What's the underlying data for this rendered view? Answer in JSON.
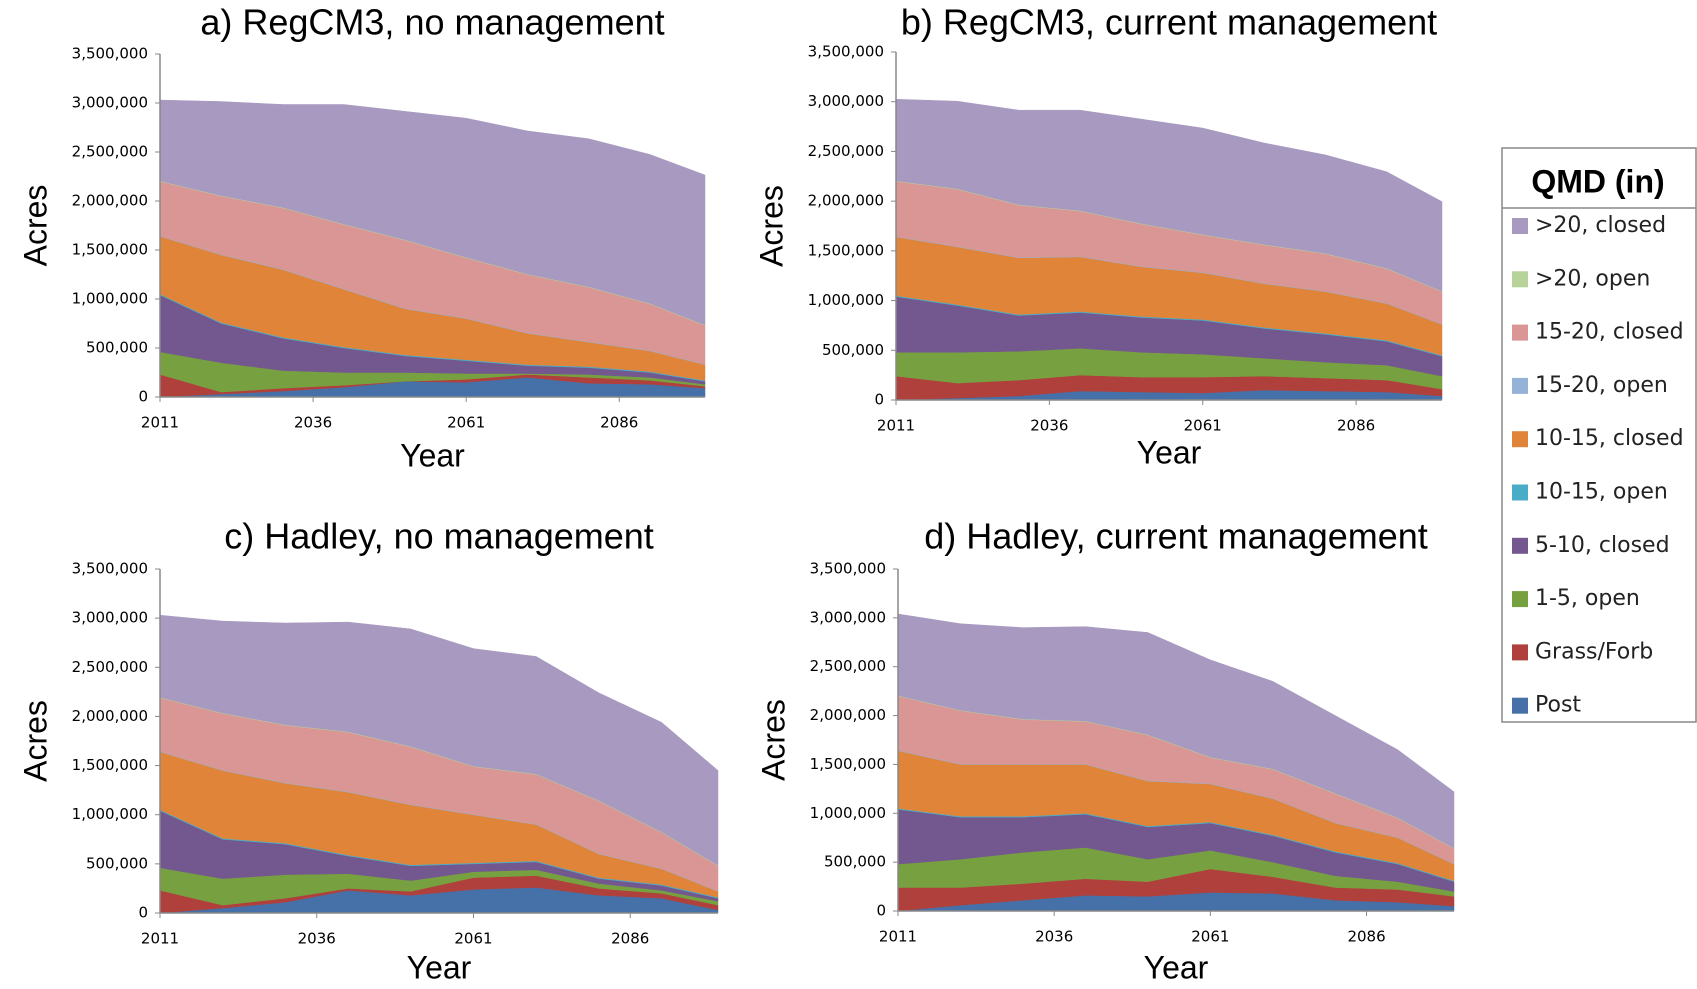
{
  "chart_data": [
    {
      "type": "stacked-area",
      "title": "a) RegCM3, no management",
      "xlabel": "Year",
      "ylabel": "Acres",
      "legend_title": "QMD (in)",
      "x": [
        2011,
        2021,
        2031,
        2041,
        2051,
        2061,
        2071,
        2081,
        2091,
        2100
      ],
      "xlim": [
        2011,
        2100
      ],
      "xticks": [
        2011,
        2036,
        2061,
        2086
      ],
      "ylim": [
        0,
        3500000
      ],
      "yticks": [
        0,
        {
          "value": 500000,
          "label": "500,000"
        },
        {
          "value": 1000000,
          "label": "1,000,000"
        },
        {
          "value": 1500000,
          "label": "1,500,000"
        },
        {
          "value": 2000000,
          "label": "2,000,000"
        },
        {
          "value": 2500000,
          "label": "2,500,000"
        },
        {
          "value": 3000000,
          "label": "3,000,000"
        },
        {
          "value": 3500000,
          "label": "3,500,000"
        }
      ],
      "series": [
        {
          "name": ">20, closed",
          "color": "#a899c0",
          "values": [
            825000,
            960000,
            1050000,
            1220000,
            1310000,
            1420000,
            1460000,
            1510000,
            1520000,
            1530000
          ]
        },
        {
          "name": ">20, open",
          "color": "#b7d39a",
          "values": [
            5000,
            5000,
            5000,
            5000,
            5000,
            5000,
            5000,
            5000,
            5000,
            5000
          ]
        },
        {
          "name": "15-20, closed",
          "color": "#d99694",
          "values": [
            555000,
            595000,
            625000,
            655000,
            695000,
            615000,
            595000,
            555000,
            475000,
            395000
          ]
        },
        {
          "name": "15-20, open",
          "color": "#95b3d7",
          "values": [
            5000,
            5000,
            5000,
            5000,
            5000,
            5000,
            5000,
            5000,
            5000,
            5000
          ]
        },
        {
          "name": "10-15, closed",
          "color": "#e0843a",
          "values": [
            590000,
            690000,
            690000,
            590000,
            470000,
            420000,
            320000,
            250000,
            210000,
            160000
          ]
        },
        {
          "name": "10-15, open",
          "color": "#4bacc6",
          "values": [
            10000,
            10000,
            10000,
            10000,
            10000,
            10000,
            10000,
            10000,
            10000,
            10000
          ]
        },
        {
          "name": "5-10, closed",
          "color": "#73578f",
          "values": [
            580000,
            400000,
            330000,
            250000,
            170000,
            130000,
            80000,
            70000,
            50000,
            30000
          ]
        },
        {
          "name": "1-5, open",
          "color": "#77a040",
          "values": [
            230000,
            300000,
            180000,
            130000,
            90000,
            60000,
            10000,
            30000,
            30000,
            20000
          ]
        },
        {
          "name": "Grass/Forb",
          "color": "#b0403c",
          "values": [
            230000,
            20000,
            30000,
            20000,
            0,
            30000,
            30000,
            60000,
            40000,
            20000
          ]
        },
        {
          "name": "Post",
          "color": "#4670a8",
          "values": [
            0,
            30000,
            60000,
            100000,
            160000,
            150000,
            200000,
            140000,
            130000,
            90000
          ]
        }
      ]
    },
    {
      "type": "stacked-area",
      "title": "b) RegCM3, current management",
      "xlabel": "Year",
      "ylabel": "Acres",
      "x": [
        2011,
        2021,
        2031,
        2041,
        2051,
        2061,
        2071,
        2081,
        2091,
        2100
      ],
      "xlim": [
        2011,
        2100
      ],
      "xticks": [
        2011,
        2036,
        2061,
        2086
      ],
      "ylim": [
        0,
        3500000
      ],
      "yticks": [
        0,
        {
          "value": 500000,
          "label": "500,000"
        },
        {
          "value": 1000000,
          "label": "1,000,000"
        },
        {
          "value": 1500000,
          "label": "1,500,000"
        },
        {
          "value": 2000000,
          "label": "2,000,000"
        },
        {
          "value": 2500000,
          "label": "2,500,000"
        },
        {
          "value": 3000000,
          "label": "3,000,000"
        },
        {
          "value": 3500000,
          "label": "3,500,000"
        }
      ],
      "series": [
        {
          "name": ">20, closed",
          "color": "#a899c0",
          "values": [
            820000,
            880000,
            950000,
            1010000,
            1050000,
            1070000,
            1020000,
            990000,
            970000,
            900000
          ]
        },
        {
          "name": ">20, open",
          "color": "#b7d39a",
          "values": [
            5000,
            5000,
            5000,
            5000,
            5000,
            5000,
            5000,
            5000,
            5000,
            5000
          ]
        },
        {
          "name": "15-20, closed",
          "color": "#d99694",
          "values": [
            555000,
            575000,
            525000,
            455000,
            425000,
            375000,
            385000,
            375000,
            345000,
            325000
          ]
        },
        {
          "name": "15-20, open",
          "color": "#95b3d7",
          "values": [
            5000,
            5000,
            5000,
            5000,
            5000,
            5000,
            5000,
            5000,
            5000,
            5000
          ]
        },
        {
          "name": "10-15, closed",
          "color": "#e0843a",
          "values": [
            590000,
            580000,
            570000,
            550000,
            500000,
            470000,
            440000,
            420000,
            370000,
            310000
          ]
        },
        {
          "name": "10-15, open",
          "color": "#4bacc6",
          "values": [
            10000,
            10000,
            10000,
            10000,
            10000,
            10000,
            10000,
            10000,
            10000,
            10000
          ]
        },
        {
          "name": "5-10, closed",
          "color": "#73578f",
          "values": [
            560000,
            470000,
            360000,
            360000,
            350000,
            340000,
            300000,
            280000,
            240000,
            200000
          ]
        },
        {
          "name": "1-5, open",
          "color": "#77a040",
          "values": [
            240000,
            310000,
            290000,
            270000,
            250000,
            230000,
            180000,
            160000,
            150000,
            130000
          ]
        },
        {
          "name": "Grass/Forb",
          "color": "#b0403c",
          "values": [
            240000,
            150000,
            160000,
            160000,
            150000,
            160000,
            140000,
            130000,
            120000,
            70000
          ]
        },
        {
          "name": "Post",
          "color": "#4670a8",
          "values": [
            0,
            20000,
            40000,
            90000,
            80000,
            70000,
            100000,
            90000,
            80000,
            40000
          ]
        }
      ]
    },
    {
      "type": "stacked-area",
      "title": "c) Hadley, no management",
      "xlabel": "Year",
      "ylabel": "Acres",
      "x": [
        2011,
        2021,
        2031,
        2041,
        2051,
        2061,
        2071,
        2081,
        2091,
        2100
      ],
      "xlim": [
        2011,
        2100
      ],
      "xticks": [
        2011,
        2036,
        2061,
        2086
      ],
      "ylim": [
        0,
        3500000
      ],
      "yticks": [
        0,
        {
          "value": 500000,
          "label": "500,000"
        },
        {
          "value": 1000000,
          "label": "1,000,000"
        },
        {
          "value": 1500000,
          "label": "1,500,000"
        },
        {
          "value": 2000000,
          "label": "2,000,000"
        },
        {
          "value": 2500000,
          "label": "2,500,000"
        },
        {
          "value": 3000000,
          "label": "3,000,000"
        },
        {
          "value": 3500000,
          "label": "3,500,000"
        }
      ],
      "series": [
        {
          "name": ">20, closed",
          "color": "#a899c0",
          "values": [
            835000,
            935000,
            1035000,
            1115000,
            1195000,
            1195000,
            1195000,
            1095000,
            1115000,
            965000
          ]
        },
        {
          "name": ">20, open",
          "color": "#b7d39a",
          "values": [
            5000,
            5000,
            5000,
            5000,
            5000,
            5000,
            5000,
            5000,
            5000,
            5000
          ]
        },
        {
          "name": "15-20, closed",
          "color": "#d99694",
          "values": [
            545000,
            575000,
            585000,
            605000,
            585000,
            485000,
            505000,
            535000,
            365000,
            255000
          ]
        },
        {
          "name": "15-20, open",
          "color": "#95b3d7",
          "values": [
            5000,
            5000,
            5000,
            5000,
            5000,
            5000,
            5000,
            5000,
            5000,
            5000
          ]
        },
        {
          "name": "10-15, closed",
          "color": "#e0843a",
          "values": [
            590000,
            690000,
            610000,
            640000,
            610000,
            490000,
            370000,
            240000,
            160000,
            60000
          ]
        },
        {
          "name": "10-15, open",
          "color": "#4bacc6",
          "values": [
            10000,
            10000,
            10000,
            10000,
            10000,
            10000,
            10000,
            10000,
            10000,
            10000
          ]
        },
        {
          "name": "5-10, closed",
          "color": "#73578f",
          "values": [
            580000,
            400000,
            310000,
            180000,
            150000,
            80000,
            80000,
            50000,
            50000,
            30000
          ]
        },
        {
          "name": "1-5, open",
          "color": "#77a040",
          "values": [
            230000,
            270000,
            240000,
            150000,
            110000,
            60000,
            60000,
            50000,
            30000,
            40000
          ]
        },
        {
          "name": "Grass/Forb",
          "color": "#b0403c",
          "values": [
            230000,
            30000,
            40000,
            20000,
            40000,
            120000,
            120000,
            70000,
            50000,
            50000
          ]
        },
        {
          "name": "Post",
          "color": "#4670a8",
          "values": [
            0,
            50000,
            110000,
            230000,
            180000,
            240000,
            260000,
            180000,
            150000,
            30000
          ]
        }
      ]
    },
    {
      "type": "stacked-area",
      "title": "d) Hadley, current management",
      "xlabel": "Year",
      "ylabel": "Acres",
      "x": [
        2011,
        2021,
        2031,
        2041,
        2051,
        2061,
        2071,
        2081,
        2091,
        2100
      ],
      "xlim": [
        2011,
        2100
      ],
      "xticks": [
        2011,
        2036,
        2061,
        2086
      ],
      "ylim": [
        0,
        3500000
      ],
      "yticks": [
        0,
        {
          "value": 500000,
          "label": "500,000"
        },
        {
          "value": 1000000,
          "label": "1,000,000"
        },
        {
          "value": 1500000,
          "label": "1,500,000"
        },
        {
          "value": 2000000,
          "label": "2,000,000"
        },
        {
          "value": 2500000,
          "label": "2,500,000"
        },
        {
          "value": 3000000,
          "label": "3,000,000"
        },
        {
          "value": 3500000,
          "label": "3,500,000"
        }
      ],
      "series": [
        {
          "name": ">20, closed",
          "color": "#a899c0",
          "values": [
            835000,
            885000,
            935000,
            965000,
            1045000,
            995000,
            895000,
            795000,
            695000,
            575000
          ]
        },
        {
          "name": ">20, open",
          "color": "#b7d39a",
          "values": [
            5000,
            5000,
            5000,
            5000,
            5000,
            5000,
            5000,
            5000,
            5000,
            5000
          ]
        },
        {
          "name": "15-20, closed",
          "color": "#d99694",
          "values": [
            555000,
            545000,
            455000,
            435000,
            465000,
            265000,
            295000,
            295000,
            195000,
            155000
          ]
        },
        {
          "name": "15-20, open",
          "color": "#95b3d7",
          "values": [
            5000,
            5000,
            5000,
            5000,
            5000,
            5000,
            5000,
            5000,
            5000,
            5000
          ]
        },
        {
          "name": "10-15, closed",
          "color": "#e0843a",
          "values": [
            590000,
            530000,
            530000,
            500000,
            460000,
            390000,
            370000,
            290000,
            260000,
            170000
          ]
        },
        {
          "name": "10-15, open",
          "color": "#4bacc6",
          "values": [
            10000,
            10000,
            10000,
            10000,
            10000,
            10000,
            10000,
            10000,
            10000,
            10000
          ]
        },
        {
          "name": "5-10, closed",
          "color": "#73578f",
          "values": [
            560000,
            430000,
            360000,
            340000,
            330000,
            280000,
            270000,
            240000,
            180000,
            100000
          ]
        },
        {
          "name": "1-5, open",
          "color": "#77a040",
          "values": [
            240000,
            290000,
            320000,
            320000,
            230000,
            190000,
            150000,
            120000,
            80000,
            50000
          ]
        },
        {
          "name": "Grass/Forb",
          "color": "#b0403c",
          "values": [
            240000,
            180000,
            170000,
            170000,
            150000,
            240000,
            170000,
            130000,
            130000,
            100000
          ]
        },
        {
          "name": "Post",
          "color": "#4670a8",
          "values": [
            0,
            60000,
            110000,
            160000,
            150000,
            190000,
            180000,
            110000,
            90000,
            50000
          ]
        }
      ]
    }
  ]
}
